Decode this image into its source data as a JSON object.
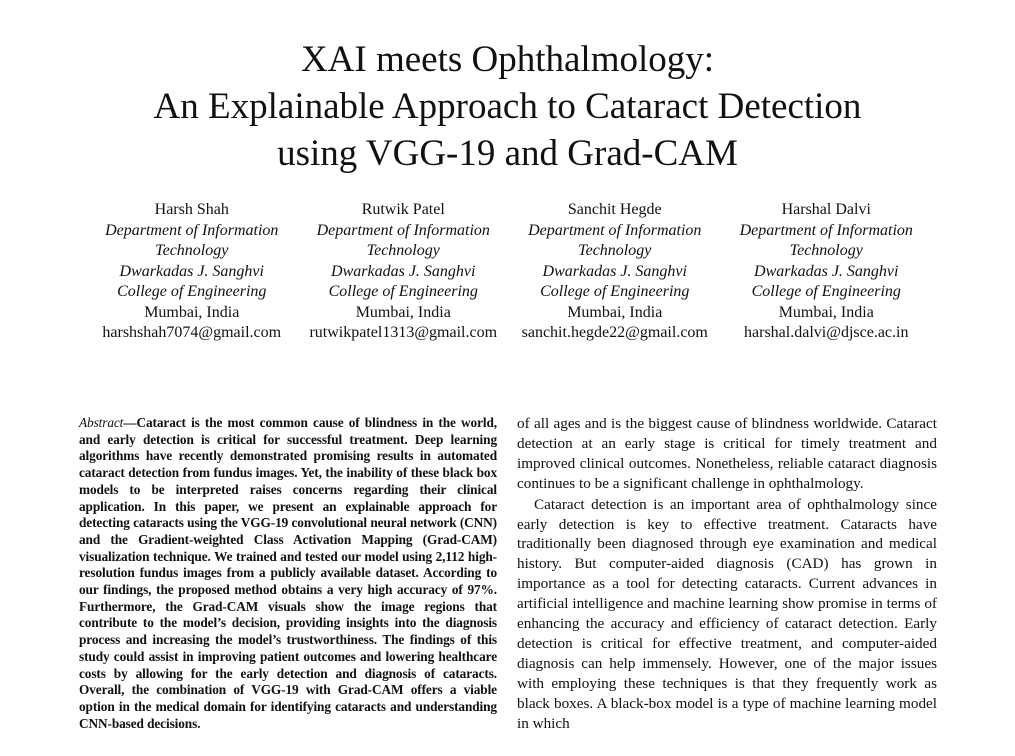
{
  "paper": {
    "title": {
      "line1": "XAI meets Ophthalmology:",
      "line2": "An Explainable Approach to Cataract Detection",
      "line3": "using VGG-19 and Grad-CAM"
    },
    "authors": [
      {
        "name": "Harsh Shah",
        "dept1": "Department of Information",
        "dept2": "Technology",
        "college1": "Dwarkadas J. Sanghvi",
        "college2": "College of Engineering",
        "city": "Mumbai, India",
        "email": "harshshah7074@gmail.com"
      },
      {
        "name": "Rutwik Patel",
        "dept1": "Department of Information",
        "dept2": "Technology",
        "college1": "Dwarkadas J. Sanghvi",
        "college2": "College of Engineering",
        "city": "Mumbai, India",
        "email": "rutwikpatel1313@gmail.com"
      },
      {
        "name": "Sanchit Hegde",
        "dept1": "Department of Information",
        "dept2": "Technology",
        "college1": "Dwarkadas J. Sanghvi",
        "college2": "College of Engineering",
        "city": "Mumbai, India",
        "email": "sanchit.hegde22@gmail.com"
      },
      {
        "name": "Harshal Dalvi",
        "dept1": "Department of Information",
        "dept2": "Technology",
        "college1": "Dwarkadas J. Sanghvi",
        "college2": "College of Engineering",
        "city": "Mumbai, India",
        "email": "harshal.dalvi@djsce.ac.in"
      }
    ],
    "abstract": {
      "label": "Abstract",
      "text": "—Cataract is the most common cause of blindness in the world, and early detection is critical for successful treatment. Deep learning algorithms have recently demonstrated promising results in automated cataract detection from fundus images. Yet, the inability of these black box models to be interpreted raises concerns regarding their clinical application. In this paper, we present an explainable approach for detecting cataracts using the VGG-19 convolutional neural network (CNN) and the Gradient-weighted Class Activation Mapping (Grad-CAM) visualization technique. We trained and tested our model using 2,112 high-resolution fundus images from a publicly available dataset. According to our findings, the proposed method obtains a very high accuracy of 97%. Furthermore, the Grad-CAM visuals show the image regions that contribute to the model’s decision, providing insights into the diagnosis process and increasing the model’s trustworthiness. The findings of this study could assist in improving patient outcomes and lowering healthcare costs by allowing for the early detection and diagnosis of cataracts. Overall, the combination of VGG-19 with Grad-CAM offers a viable option in the medical domain for identifying cataracts and understanding CNN-based decisions."
    },
    "body": {
      "para1": "of all ages and is the biggest cause of blindness worldwide. Cataract detection at an early stage is critical for timely treatment and improved clinical outcomes. Nonetheless, reliable cataract diagnosis continues to be a significant challenge in ophthalmology.",
      "para2": "Cataract detection is an important area of ophthalmology since early detection is key to effective treatment. Cataracts have traditionally been diagnosed through eye examination and medical history. But computer-aided diagnosis (CAD) has grown in importance as a tool for detecting cataracts. Current advances in artificial intelligence and machine learning show promise in terms of enhancing the accuracy and efficiency of cataract detection. Early detection is critical for effective treatment, and computer-aided diagnosis can help immensely. However, one of the major issues with employing these techniques is that they frequently work as black boxes. A black-box model is a type of machine learning model in which"
    }
  }
}
